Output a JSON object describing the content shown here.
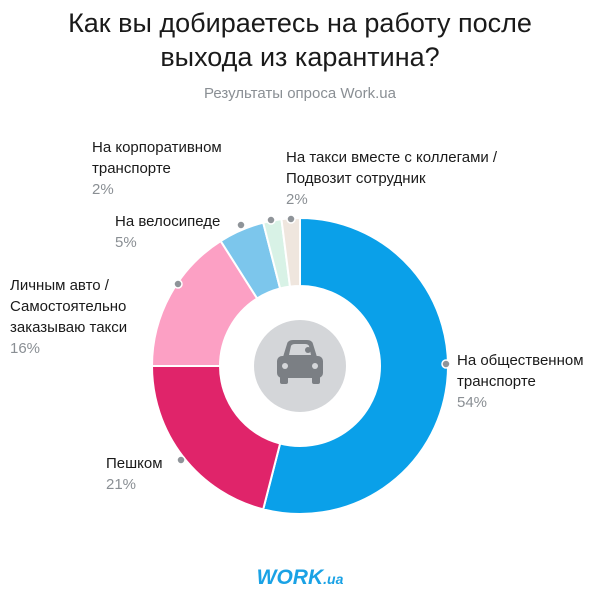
{
  "header": {
    "title_line1": "Как вы добираетесь на работу после",
    "title_line2": "выхода из карантина?",
    "subtitle": "Результаты опроса Work.ua"
  },
  "logo": {
    "main": "WORK",
    "suffix": ".ua",
    "color": "#1aa2e5"
  },
  "center_icon": "car-icon",
  "chart_data": {
    "type": "pie",
    "donut": true,
    "start_angle_deg": 0,
    "direction": "clockwise",
    "slices": [
      {
        "label_lines": [
          "На общественном",
          "транспорте"
        ],
        "value_label": "54%",
        "value": 54,
        "color": "#0aa0e9"
      },
      {
        "label_lines": [
          "Пешком"
        ],
        "value_label": "21%",
        "value": 21,
        "color": "#e0246a"
      },
      {
        "label_lines": [
          "Личным авто /",
          "Самостоятельно",
          "заказываю такси"
        ],
        "value_label": "16%",
        "value": 16,
        "color": "#fca0c4"
      },
      {
        "label_lines": [
          "На велосипеде"
        ],
        "value_label": "5%",
        "value": 5,
        "color": "#7cc6ec"
      },
      {
        "label_lines": [
          "На корпоративном",
          "транспорте"
        ],
        "value_label": "2%",
        "value": 2,
        "color": "#d8f2e6"
      },
      {
        "label_lines": [
          "На такси вместе с коллегами /",
          "Подвозит сотрудник"
        ],
        "value_label": "2%",
        "value": 2,
        "color": "#efe6de"
      }
    ]
  }
}
